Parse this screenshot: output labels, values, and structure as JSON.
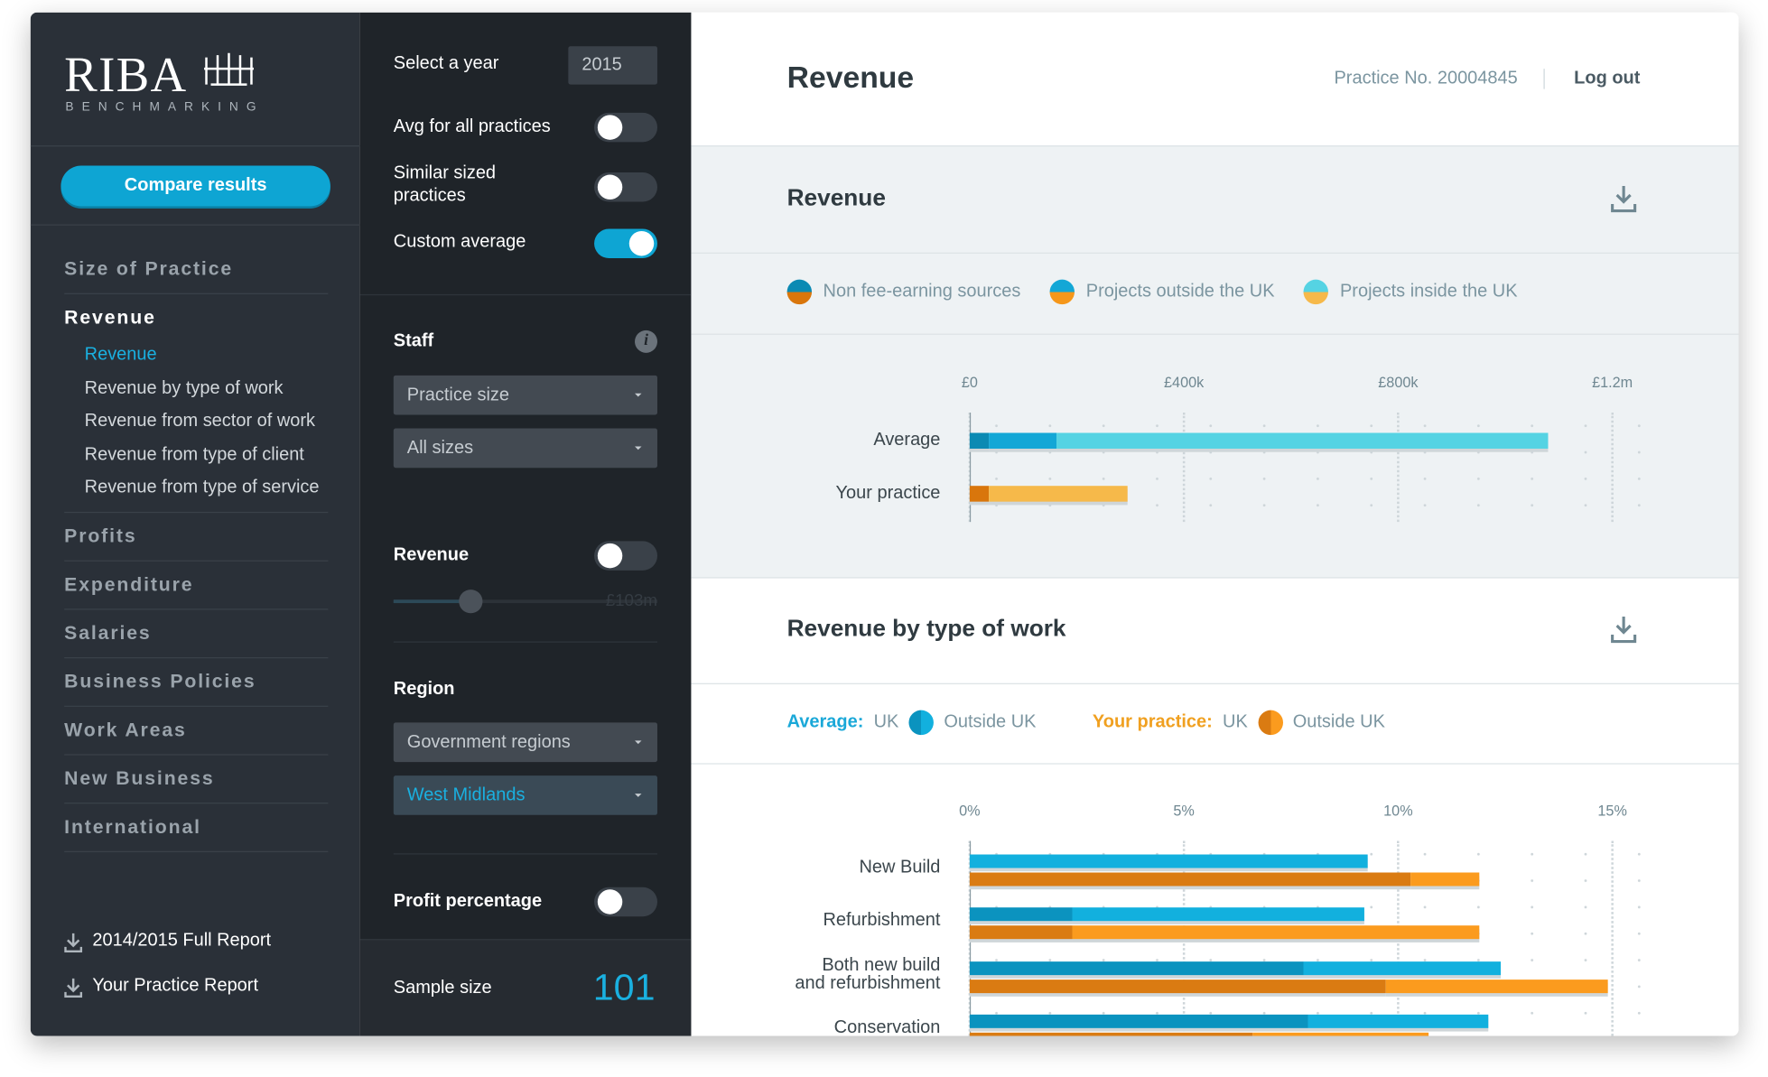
{
  "brand": {
    "logo": "RIBA",
    "subtitle": "BENCHMARKING"
  },
  "sidebar": {
    "button": "Compare results",
    "nav": [
      "Size of Practice",
      "Revenue",
      "Profits",
      "Expenditure",
      "Salaries",
      "Business Policies",
      "Work Areas",
      "New Business",
      "International"
    ],
    "revenue_subnav": [
      "Revenue",
      "Revenue by type of work",
      "Revenue from sector of work",
      "Revenue from type of client",
      "Revenue from type of service"
    ],
    "downloads": [
      "2014/2015 Full Report",
      "Your Practice Report"
    ]
  },
  "filters": {
    "year_label": "Select a year",
    "year": "2015",
    "toggles": [
      {
        "label": "Avg for all practices",
        "on": false
      },
      {
        "label": "Similar sized practices",
        "on": false
      },
      {
        "label": "Custom average",
        "on": true
      }
    ],
    "staff": {
      "title": "Staff",
      "dropdowns": [
        "Practice size",
        "All sizes"
      ]
    },
    "revenue": {
      "title": "Revenue",
      "on": false,
      "slider_label": "£103m"
    },
    "region": {
      "title": "Region",
      "dropdowns": [
        "Government regions",
        "West Midlands"
      ]
    },
    "profit": {
      "title": "Profit percentage",
      "on": false
    },
    "sample": {
      "label": "Sample size",
      "value": 101
    }
  },
  "header": {
    "title": "Revenue",
    "practice": "Practice No. 20004845",
    "logout": "Log out"
  },
  "charts": [
    {
      "type": "stacked_bar",
      "title": "Revenue",
      "categories": [
        "Average",
        "Your practice"
      ],
      "series": [
        {
          "name": "Non fee-earning sources",
          "colors": [
            "#0b8ab3",
            "#d9760c"
          ],
          "values": [
            36000,
            36000
          ]
        },
        {
          "name": "Projects outside the UK",
          "colors": [
            "#13a7d6",
            "#f5971a"
          ],
          "values": [
            126000,
            0
          ]
        },
        {
          "name": "Projects inside the UK",
          "colors": [
            "#55d3e3",
            "#f6b94a"
          ],
          "values": [
            918000,
            259000
          ]
        }
      ],
      "xlim": [
        0,
        1200000
      ],
      "xticks": [
        {
          "value": 0,
          "label": "£0"
        },
        {
          "value": 400000,
          "label": "£400k"
        },
        {
          "value": 800000,
          "label": "£800k"
        },
        {
          "value": 1200000,
          "label": "£1.2m"
        }
      ]
    },
    {
      "type": "grouped_stacked_bar",
      "title": "Revenue by type of work",
      "categories": [
        "New Build",
        "Refurbishment",
        "Both new build and refurbishment",
        "Conservation"
      ],
      "groups": [
        {
          "name": "Average:",
          "color": "#1aa8d8",
          "series": [
            {
              "name": "UK",
              "color": "#0b93bf",
              "values": [
                0,
                2.4,
                7.8,
                7.9
              ]
            },
            {
              "name": "Outside UK",
              "color": "#12b0de",
              "values": [
                9.3,
                6.8,
                4.6,
                4.2
              ]
            }
          ]
        },
        {
          "name": "Your practice:",
          "color": "#f0a020",
          "series": [
            {
              "name": "UK",
              "color": "#da7b12",
              "values": [
                10.3,
                2.4,
                9.7,
                6.6
              ]
            },
            {
              "name": "Outside UK",
              "color": "#fb9b1e",
              "values": [
                1.6,
                9.5,
                5.2,
                4.1
              ]
            }
          ]
        }
      ],
      "xlim": [
        0,
        15
      ],
      "xticks": [
        {
          "value": 0,
          "label": "0%"
        },
        {
          "value": 5,
          "label": "5%"
        },
        {
          "value": 10,
          "label": "10%"
        },
        {
          "value": 15,
          "label": "15%"
        }
      ]
    }
  ]
}
